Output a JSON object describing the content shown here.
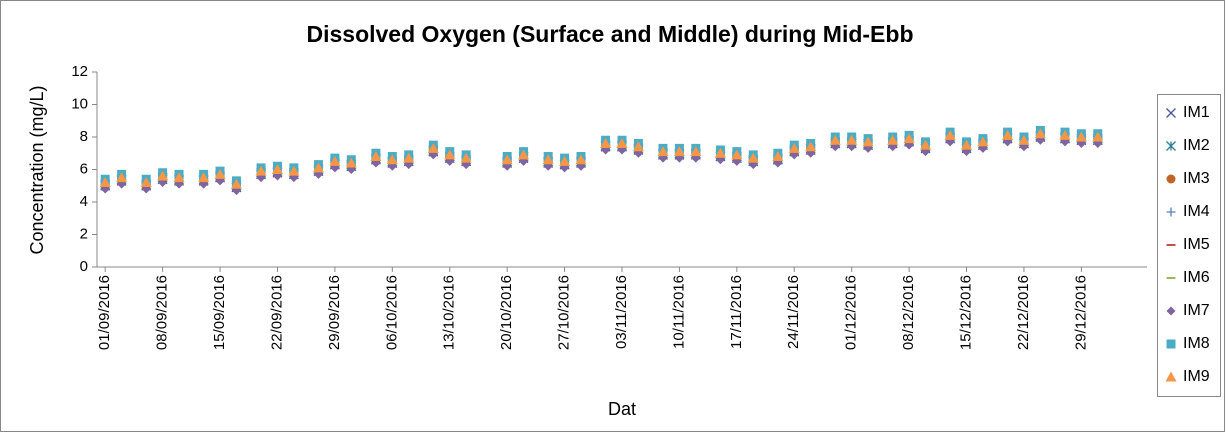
{
  "chart_data": {
    "type": "scatter",
    "title": "Dissolved Oxygen (Surface and Middle) during Mid-Ebb",
    "x_label": "Dat",
    "y_label": "Concentration (mg/L)",
    "x": [
      "01/09/2016",
      "03/09/2016",
      "06/09/2016",
      "08/09/2016",
      "10/09/2016",
      "13/09/2016",
      "15/09/2016",
      "17/09/2016",
      "20/09/2016",
      "22/09/2016",
      "24/09/2016",
      "27/09/2016",
      "29/09/2016",
      "01/10/2016",
      "04/10/2016",
      "06/10/2016",
      "08/10/2016",
      "11/10/2016",
      "13/10/2016",
      "15/10/2016",
      "20/10/2016",
      "22/10/2016",
      "25/10/2016",
      "27/10/2016",
      "29/10/2016",
      "01/11/2016",
      "03/11/2016",
      "05/11/2016",
      "08/11/2016",
      "10/11/2016",
      "12/11/2016",
      "15/11/2016",
      "17/11/2016",
      "19/11/2016",
      "22/11/2016",
      "24/11/2016",
      "26/11/2016",
      "29/11/2016",
      "01/12/2016",
      "03/12/2016",
      "06/12/2016",
      "08/12/2016",
      "10/12/2016",
      "13/12/2016",
      "15/12/2016",
      "17/12/2016",
      "20/12/2016",
      "22/12/2016",
      "24/12/2016",
      "27/12/2016",
      "29/12/2016",
      "31/12/2016"
    ],
    "xlim": [
      "31/08/2016",
      "06/01/2017"
    ],
    "xticks": [
      "01/09/2016",
      "08/09/2016",
      "15/09/2016",
      "22/09/2016",
      "29/09/2016",
      "06/10/2016",
      "13/10/2016",
      "20/10/2016",
      "27/10/2016",
      "03/11/2016",
      "10/11/2016",
      "17/11/2016",
      "24/11/2016",
      "01/12/2016",
      "08/12/2016",
      "15/12/2016",
      "22/12/2016",
      "29/12/2016"
    ],
    "ylim": [
      0,
      12
    ],
    "yticks": [
      0,
      2,
      4,
      6,
      8,
      10,
      12
    ],
    "grid": false,
    "legend": "right",
    "series": [
      {
        "name": "IM1",
        "color": "#4a5698",
        "marker": "x",
        "values": [
          5.0,
          5.3,
          5.0,
          5.4,
          5.3,
          5.3,
          5.5,
          4.9,
          5.7,
          5.8,
          5.7,
          5.9,
          6.3,
          6.2,
          6.6,
          6.4,
          6.5,
          7.1,
          6.7,
          6.5,
          6.4,
          6.7,
          6.4,
          6.3,
          6.4,
          7.4,
          7.4,
          7.2,
          6.9,
          6.9,
          6.9,
          6.8,
          6.7,
          6.5,
          6.6,
          7.1,
          7.2,
          7.6,
          7.6,
          7.5,
          7.6,
          7.7,
          7.3,
          7.9,
          7.3,
          7.5,
          7.9,
          7.6,
          8.0,
          7.9,
          7.8,
          7.8
        ]
      },
      {
        "name": "IM2",
        "color": "#2c7f9a",
        "marker": "star",
        "values": [
          5.1,
          5.4,
          5.1,
          5.5,
          5.4,
          5.4,
          5.6,
          5.0,
          5.8,
          5.9,
          5.8,
          6.0,
          6.4,
          6.3,
          6.7,
          6.5,
          6.6,
          7.2,
          6.8,
          6.6,
          6.5,
          6.8,
          6.5,
          6.4,
          6.5,
          7.5,
          7.5,
          7.3,
          7.0,
          7.0,
          7.0,
          6.9,
          6.8,
          6.6,
          6.7,
          7.2,
          7.3,
          7.7,
          7.7,
          7.6,
          7.7,
          7.8,
          7.4,
          8.0,
          7.4,
          7.6,
          8.0,
          7.7,
          8.1,
          8.0,
          7.9,
          7.9
        ]
      },
      {
        "name": "IM3",
        "color": "#c0652a",
        "marker": "circle",
        "values": [
          5.1,
          5.4,
          5.1,
          5.5,
          5.4,
          5.4,
          5.6,
          5.0,
          5.8,
          5.9,
          5.8,
          6.0,
          6.4,
          6.3,
          6.7,
          6.5,
          6.6,
          7.2,
          6.8,
          6.6,
          6.5,
          6.8,
          6.5,
          6.4,
          6.5,
          7.5,
          7.5,
          7.3,
          7.0,
          7.0,
          7.0,
          6.9,
          6.8,
          6.6,
          6.7,
          7.2,
          7.3,
          7.7,
          7.7,
          7.6,
          7.7,
          7.8,
          7.4,
          8.0,
          7.4,
          7.6,
          8.0,
          7.7,
          8.1,
          8.0,
          7.9,
          7.9
        ]
      },
      {
        "name": "IM4",
        "color": "#4f81bd",
        "marker": "plus",
        "values": [
          5.1,
          5.4,
          5.1,
          5.5,
          5.4,
          5.4,
          5.6,
          5.0,
          5.8,
          5.9,
          5.8,
          6.0,
          6.4,
          6.3,
          6.7,
          6.5,
          6.6,
          7.2,
          6.8,
          6.6,
          6.5,
          6.8,
          6.5,
          6.4,
          6.5,
          7.5,
          7.5,
          7.3,
          7.0,
          7.0,
          7.0,
          6.9,
          6.8,
          6.6,
          6.7,
          7.2,
          7.3,
          7.7,
          7.7,
          7.6,
          7.7,
          7.8,
          7.4,
          8.0,
          7.4,
          7.6,
          8.0,
          7.7,
          8.1,
          8.0,
          7.9,
          7.9
        ]
      },
      {
        "name": "IM5",
        "color": "#c0504d",
        "marker": "dash",
        "values": [
          5.1,
          5.4,
          5.1,
          5.5,
          5.4,
          5.4,
          5.6,
          5.0,
          5.8,
          5.9,
          5.8,
          6.0,
          6.4,
          6.3,
          6.7,
          6.5,
          6.6,
          7.2,
          6.8,
          6.6,
          6.5,
          6.8,
          6.5,
          6.4,
          6.5,
          7.5,
          7.5,
          7.3,
          7.0,
          7.0,
          7.0,
          6.9,
          6.8,
          6.6,
          6.7,
          7.2,
          7.3,
          7.7,
          7.7,
          7.6,
          7.7,
          7.8,
          7.4,
          8.0,
          7.4,
          7.6,
          8.0,
          7.7,
          8.1,
          8.0,
          7.9,
          7.9
        ]
      },
      {
        "name": "IM6",
        "color": "#9bbb59",
        "marker": "dash",
        "values": [
          5.1,
          5.4,
          5.1,
          5.5,
          5.4,
          5.4,
          5.6,
          5.0,
          5.8,
          5.9,
          5.8,
          6.0,
          6.4,
          6.3,
          6.7,
          6.5,
          6.6,
          7.2,
          6.8,
          6.6,
          6.5,
          6.8,
          6.5,
          6.4,
          6.5,
          7.5,
          7.5,
          7.3,
          7.0,
          7.0,
          7.0,
          6.9,
          6.8,
          6.6,
          6.7,
          7.2,
          7.3,
          7.7,
          7.7,
          7.6,
          7.7,
          7.8,
          7.4,
          8.0,
          7.4,
          7.6,
          8.0,
          7.7,
          8.1,
          8.0,
          7.9,
          7.9
        ]
      },
      {
        "name": "IM7",
        "color": "#8064a2",
        "marker": "diamond",
        "values": [
          4.8,
          5.1,
          4.8,
          5.2,
          5.1,
          5.1,
          5.3,
          4.7,
          5.5,
          5.6,
          5.5,
          5.7,
          6.1,
          6.0,
          6.4,
          6.2,
          6.3,
          6.9,
          6.5,
          6.3,
          6.2,
          6.5,
          6.2,
          6.1,
          6.2,
          7.2,
          7.2,
          7.0,
          6.7,
          6.7,
          6.7,
          6.6,
          6.5,
          6.3,
          6.4,
          6.9,
          7.0,
          7.4,
          7.4,
          7.3,
          7.4,
          7.5,
          7.1,
          7.7,
          7.1,
          7.3,
          7.7,
          7.4,
          7.8,
          7.7,
          7.6,
          7.6
        ]
      },
      {
        "name": "IM8",
        "color": "#4bacc6",
        "marker": "square",
        "values": [
          5.4,
          5.7,
          5.4,
          5.8,
          5.7,
          5.7,
          5.9,
          5.3,
          6.1,
          6.2,
          6.1,
          6.3,
          6.7,
          6.6,
          7.0,
          6.8,
          6.9,
          7.5,
          7.1,
          6.9,
          6.8,
          7.1,
          6.8,
          6.7,
          6.8,
          7.8,
          7.8,
          7.6,
          7.3,
          7.3,
          7.3,
          7.2,
          7.1,
          6.9,
          7.0,
          7.5,
          7.6,
          8.0,
          8.0,
          7.9,
          8.0,
          8.1,
          7.7,
          8.3,
          7.7,
          7.9,
          8.3,
          8.0,
          8.4,
          8.3,
          8.2,
          8.2
        ]
      },
      {
        "name": "IM9",
        "color": "#f79646",
        "marker": "triangle",
        "values": [
          5.2,
          5.5,
          5.2,
          5.6,
          5.5,
          5.5,
          5.7,
          5.1,
          5.9,
          6.0,
          5.9,
          6.1,
          6.5,
          6.4,
          6.8,
          6.6,
          6.7,
          7.3,
          6.9,
          6.7,
          6.6,
          6.9,
          6.6,
          6.5,
          6.6,
          7.6,
          7.6,
          7.4,
          7.1,
          7.1,
          7.1,
          7.0,
          6.9,
          6.7,
          6.8,
          7.3,
          7.4,
          7.8,
          7.8,
          7.7,
          7.8,
          7.9,
          7.5,
          8.1,
          7.5,
          7.7,
          8.1,
          7.8,
          8.2,
          8.1,
          8.0,
          8.0
        ]
      }
    ]
  }
}
